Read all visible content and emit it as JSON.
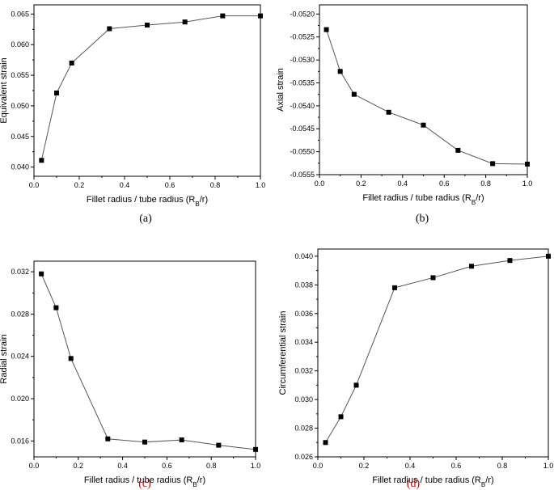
{
  "figure": {
    "caption_color_black": "#000000",
    "caption_color_red": "#c00000"
  },
  "chart_data": [
    {
      "id": "a",
      "type": "line",
      "caption": "(a)",
      "xlabel": "Fillet radius / tube radius (R",
      "xlabel_sub": "B",
      "xlabel_end": "/r)",
      "ylabel": "Equivalent strain",
      "xlim": [
        0.0,
        1.0
      ],
      "ylim": [
        0.0385,
        0.0665
      ],
      "xticks": [
        0.0,
        0.2,
        0.4,
        0.6,
        0.8,
        1.0
      ],
      "xtick_labels": [
        "0.0",
        "0.2",
        "0.4",
        "0.6",
        "0.8",
        "1.0"
      ],
      "yticks": [
        0.04,
        0.045,
        0.05,
        0.055,
        0.06,
        0.065
      ],
      "ytick_labels": [
        "0.040",
        "0.045",
        "0.050",
        "0.055",
        "0.060",
        "0.065"
      ],
      "series": [
        {
          "x": [
            0.0333,
            0.1,
            0.1667,
            0.3333,
            0.5,
            0.6667,
            0.8333,
            1.0
          ],
          "y": [
            0.0411,
            0.0521,
            0.057,
            0.0626,
            0.0632,
            0.0637,
            0.0647,
            0.0647
          ]
        }
      ]
    },
    {
      "id": "b",
      "type": "line",
      "caption": "(b)",
      "xlabel": "Fillet radius / tube radius (R",
      "xlabel_sub": "B",
      "xlabel_end": "/r)",
      "ylabel": "Axial strain",
      "xlim": [
        0.0,
        1.0
      ],
      "ylim": [
        -0.0555,
        -0.0518
      ],
      "xticks": [
        0.0,
        0.2,
        0.4,
        0.6,
        0.8,
        1.0
      ],
      "xtick_labels": [
        "0.0",
        "0.2",
        "0.4",
        "0.6",
        "0.8",
        "1.0"
      ],
      "yticks": [
        -0.0555,
        -0.055,
        -0.0545,
        -0.054,
        -0.0535,
        -0.053,
        -0.0525,
        -0.052
      ],
      "ytick_labels": [
        "-0.0555",
        "-0.0550",
        "-0.0545",
        "-0.0540",
        "-0.0535",
        "-0.0530",
        "-0.0525",
        "-0.0520"
      ],
      "series": [
        {
          "x": [
            0.0333,
            0.1,
            0.1667,
            0.3333,
            0.5,
            0.6667,
            0.8333,
            1.0
          ],
          "y": [
            -0.05234,
            -0.05325,
            -0.05375,
            -0.05414,
            -0.05442,
            -0.05497,
            -0.05526,
            -0.05527
          ]
        }
      ]
    },
    {
      "id": "c",
      "type": "line",
      "caption": "(c)",
      "xlabel": "Fillet radius / tube radius (R",
      "xlabel_sub": "B",
      "xlabel_end": "/r)",
      "ylabel": "Radial strain",
      "xlim": [
        0.0,
        1.0
      ],
      "ylim": [
        0.0145,
        0.033
      ],
      "xticks": [
        0.0,
        0.2,
        0.4,
        0.6,
        0.8,
        1.0
      ],
      "xtick_labels": [
        "0.0",
        "0.2",
        "0.4",
        "0.6",
        "0.8",
        "1.0"
      ],
      "yticks": [
        0.016,
        0.02,
        0.024,
        0.028,
        0.032
      ],
      "ytick_labels": [
        "0.016",
        "0.020",
        "0.024",
        "0.028",
        "0.032"
      ],
      "series": [
        {
          "x": [
            0.0333,
            0.1,
            0.1667,
            0.3333,
            0.5,
            0.6667,
            0.8333,
            1.0
          ],
          "y": [
            0.0318,
            0.0286,
            0.0238,
            0.0162,
            0.0159,
            0.0161,
            0.0156,
            0.0152
          ]
        }
      ]
    },
    {
      "id": "d",
      "type": "line",
      "caption": "(d)",
      "xlabel": "Fillet radius / tube radius (R",
      "xlabel_sub": "B",
      "xlabel_end": "/r)",
      "ylabel": "Circumferential strain",
      "xlim": [
        0.0,
        1.0
      ],
      "ylim": [
        0.026,
        0.0405
      ],
      "xticks": [
        0.0,
        0.2,
        0.4,
        0.6,
        0.8,
        1.0
      ],
      "xtick_labels": [
        "0.0",
        "0.2",
        "0.4",
        "0.6",
        "0.8",
        "1.0"
      ],
      "yticks": [
        0.026,
        0.028,
        0.03,
        0.032,
        0.034,
        0.036,
        0.038,
        0.04
      ],
      "ytick_labels": [
        "0.026",
        "0.028",
        "0.030",
        "0.032",
        "0.034",
        "0.036",
        "0.038",
        "0.040"
      ],
      "series": [
        {
          "x": [
            0.0333,
            0.1,
            0.1667,
            0.3333,
            0.5,
            0.6667,
            0.8333,
            1.0
          ],
          "y": [
            0.027,
            0.0288,
            0.031,
            0.0378,
            0.0385,
            0.0393,
            0.0397,
            0.04
          ]
        }
      ]
    }
  ]
}
